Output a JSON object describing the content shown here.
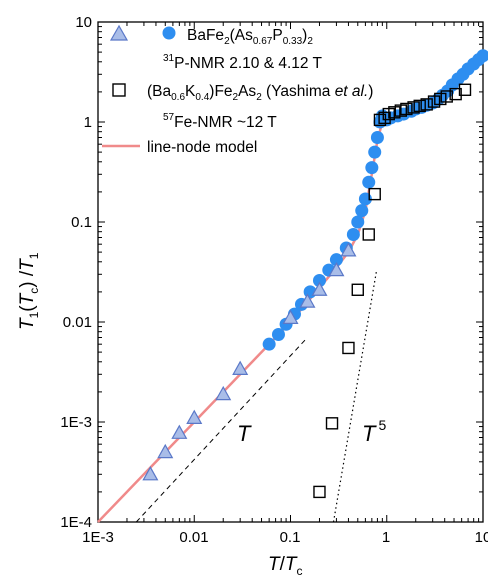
{
  "chart_data": {
    "type": "scatter",
    "xscale": "log",
    "yscale": "log",
    "xlim": [
      0.001,
      10
    ],
    "ylim": [
      0.0001,
      10
    ],
    "xlabel": {
      "main": "T",
      "sep": "/",
      "main2": "T",
      "sub": "c"
    },
    "ylabel": {
      "p1": "T",
      "s1": "1",
      "p2": "(",
      "p3": "T",
      "s2": "c",
      "p4": ") /",
      "p5": "T",
      "s3": "1"
    },
    "x_tick_labels": [
      "1E-3",
      "0.01",
      "0.1",
      "1",
      "10"
    ],
    "y_tick_labels": [
      "1E-4",
      "1E-3",
      "0.01",
      "0.1",
      "1",
      "10"
    ],
    "legend": {
      "placement": "top-right",
      "entry1": {
        "name": "BaFe",
        "sub1": "2",
        "mid": "(As",
        "sub2": "0.67",
        "mid2": "P",
        "sub3": "0.33",
        "end": ")",
        "sub4": "2",
        "note_sup": "31",
        "note": "P-NMR 2.10 & 4.12 T"
      },
      "entry2": {
        "p1": "(Ba",
        "s1": "0.6",
        "p2": "K",
        "s2": "0.4",
        "p3": ")Fe",
        "s3": "2",
        "p4": "As",
        "s4": "2",
        "p5": " (Yashima ",
        "etal": "et al.",
        "p6": ")",
        "note_sup": "57",
        "note": "Fe-NMR ~12 T"
      },
      "entry3": {
        "name": "line-node model"
      }
    },
    "annotations": [
      {
        "text": "T",
        "x": 0.035,
        "y": 0.00085
      },
      {
        "text": "T",
        "sup": "5",
        "x": 0.27,
        "y": 0.00085
      }
    ],
    "colors": {
      "circles": "#2e8ef0",
      "triangles_fill": "#a9bde8",
      "triangles_stroke": "#5a78c8",
      "squares": "#000000",
      "model_line": "#f08a8a"
    },
    "series": [
      {
        "marker": "circle",
        "points": [
          [
            0.06,
            0.006
          ],
          [
            0.075,
            0.0075
          ],
          [
            0.09,
            0.0095
          ],
          [
            0.11,
            0.012
          ],
          [
            0.13,
            0.015
          ],
          [
            0.16,
            0.02
          ],
          [
            0.2,
            0.026
          ],
          [
            0.25,
            0.033
          ],
          [
            0.3,
            0.042
          ],
          [
            0.38,
            0.055
          ],
          [
            0.45,
            0.075
          ],
          [
            0.5,
            0.1
          ],
          [
            0.55,
            0.13
          ],
          [
            0.6,
            0.17
          ],
          [
            0.65,
            0.25
          ],
          [
            0.7,
            0.35
          ],
          [
            0.75,
            0.5
          ],
          [
            0.8,
            0.7
          ],
          [
            0.85,
            1.0
          ],
          [
            0.9,
            1.15
          ],
          [
            1.0,
            1.05
          ],
          [
            1.1,
            1.1
          ],
          [
            1.3,
            1.15
          ],
          [
            1.5,
            1.2
          ],
          [
            1.8,
            1.28
          ],
          [
            2.0,
            1.35
          ],
          [
            2.3,
            1.4
          ],
          [
            2.6,
            1.47
          ],
          [
            3.0,
            1.55
          ],
          [
            3.4,
            1.68
          ],
          [
            3.8,
            1.85
          ],
          [
            4.3,
            2.05
          ],
          [
            4.8,
            2.35
          ],
          [
            5.5,
            2.7
          ],
          [
            6.2,
            3.0
          ],
          [
            7.0,
            3.4
          ],
          [
            8.0,
            3.8
          ],
          [
            9.0,
            4.2
          ],
          [
            10.0,
            4.6
          ]
        ]
      },
      {
        "marker": "triangle",
        "points": [
          [
            0.0035,
            0.0003
          ],
          [
            0.005,
            0.0005
          ],
          [
            0.007,
            0.00078
          ],
          [
            0.01,
            0.0011
          ],
          [
            0.02,
            0.0019
          ],
          [
            0.03,
            0.0034
          ],
          [
            0.1,
            0.011
          ],
          [
            0.15,
            0.016
          ],
          [
            0.2,
            0.021
          ],
          [
            0.3,
            0.033
          ],
          [
            0.4,
            0.052
          ]
        ]
      },
      {
        "marker": "square",
        "points": [
          [
            0.2,
            0.0002
          ],
          [
            0.27,
            0.00097
          ],
          [
            0.4,
            0.0055
          ],
          [
            0.5,
            0.021
          ],
          [
            0.65,
            0.075
          ],
          [
            0.75,
            0.19
          ],
          [
            0.85,
            1.05
          ],
          [
            0.95,
            1.1
          ],
          [
            1.05,
            1.2
          ],
          [
            1.2,
            1.25
          ],
          [
            1.4,
            1.3
          ],
          [
            1.6,
            1.35
          ],
          [
            1.9,
            1.4
          ],
          [
            2.2,
            1.45
          ],
          [
            2.6,
            1.5
          ],
          [
            3.1,
            1.6
          ],
          [
            3.6,
            1.7
          ],
          [
            4.2,
            1.8
          ],
          [
            5.2,
            1.9
          ],
          [
            6.5,
            2.1
          ]
        ]
      },
      {
        "marker": "line",
        "points": [
          [
            0.001,
            0.0001
          ],
          [
            0.003,
            0.0003
          ],
          [
            0.01,
            0.001
          ],
          [
            0.03,
            0.003
          ],
          [
            0.1,
            0.01
          ],
          [
            0.2,
            0.022
          ],
          [
            0.3,
            0.035
          ],
          [
            0.4,
            0.05
          ],
          [
            0.5,
            0.075
          ],
          [
            0.6,
            0.13
          ],
          [
            0.7,
            0.3
          ],
          [
            0.8,
            0.65
          ],
          [
            0.9,
            1.0
          ],
          [
            1.0,
            1.05
          ],
          [
            1.3,
            1.15
          ],
          [
            2.0,
            1.3
          ],
          [
            3.0,
            1.5
          ],
          [
            5.0,
            2.3
          ],
          [
            7.0,
            3.3
          ],
          [
            10.0,
            4.5
          ]
        ]
      },
      {
        "marker": "dashed",
        "points": [
          [
            0.0025,
            0.0001
          ],
          [
            0.15,
            0.007
          ]
        ]
      },
      {
        "marker": "dotted",
        "points": [
          [
            0.28,
            0.0001
          ],
          [
            0.78,
            0.032
          ]
        ]
      }
    ]
  }
}
